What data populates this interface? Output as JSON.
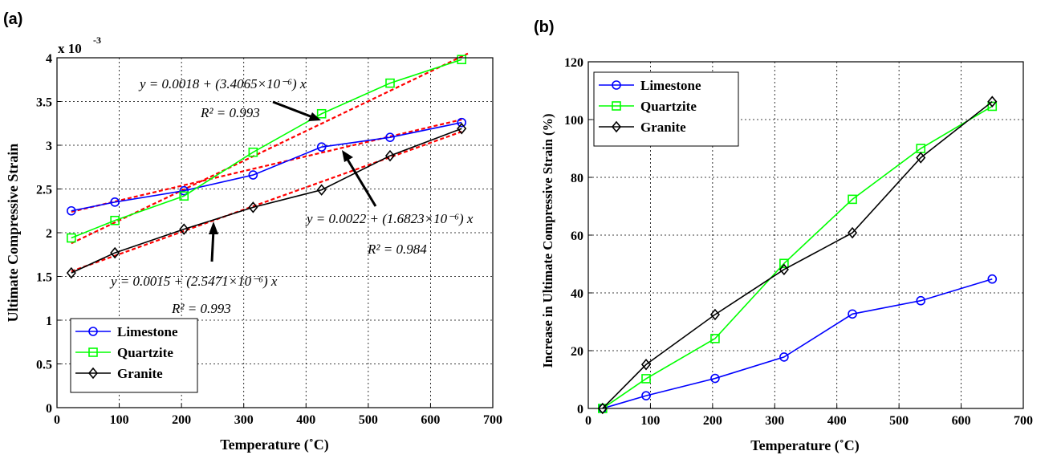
{
  "chart_data": [
    {
      "type": "line",
      "panel_label": "(a)",
      "title": "",
      "xlabel": "Temperature (˚C)",
      "ylabel": "Ultimate Compressive Strain",
      "y_multiplier_label": "x 10",
      "y_multiplier_exp": "-3",
      "xlim": [
        0,
        700
      ],
      "ylim": [
        0,
        4
      ],
      "xticks": [
        0,
        100,
        200,
        300,
        400,
        500,
        600,
        700
      ],
      "yticks": [
        0,
        0.5,
        1,
        1.5,
        2,
        2.5,
        3,
        3.5,
        4
      ],
      "grid": true,
      "legend": "bottom-left",
      "x": [
        23,
        93,
        204,
        315,
        425,
        535,
        650
      ],
      "series": [
        {
          "name": "Limestone",
          "color": "#0000FF",
          "marker": "circle",
          "values": [
            2.25,
            2.35,
            2.48,
            2.66,
            2.98,
            3.09,
            3.26
          ]
        },
        {
          "name": "Quartzite",
          "color": "#00FF00",
          "marker": "square",
          "values": [
            1.94,
            2.14,
            2.42,
            2.92,
            3.36,
            3.71,
            3.98
          ]
        },
        {
          "name": "Granite",
          "color": "#000000",
          "marker": "diamond",
          "values": [
            1.54,
            1.77,
            2.04,
            2.29,
            2.49,
            2.88,
            3.19
          ]
        }
      ],
      "fit_lines": [
        {
          "color": "#FF0000",
          "intercept": 1.8,
          "slope": 0.0034065,
          "x_range": [
            23,
            660
          ],
          "eq": "y = 0.0018 + (3.4065×10⁻⁶) x",
          "r2": "R² = 0.993"
        },
        {
          "color": "#FF0000",
          "intercept": 2.2,
          "slope": 0.0016823,
          "x_range": [
            23,
            650
          ],
          "eq": "y = 0.0022 + (1.6823×10⁻⁶) x",
          "r2": "R² = 0.984"
        },
        {
          "color": "#FF0000",
          "intercept": 1.5,
          "slope": 0.0025471,
          "x_range": [
            23,
            650
          ],
          "eq": "y = 0.0015 + (2.5471×10⁻⁶) x",
          "r2": "R² = 0.993"
        }
      ]
    },
    {
      "type": "line",
      "panel_label": "(b)",
      "title": "",
      "xlabel": "Temperature (˚C)",
      "ylabel": "Increase in Ultimate Compressive Strain (%)",
      "xlim": [
        0,
        700
      ],
      "ylim": [
        0,
        120
      ],
      "xticks": [
        0,
        100,
        200,
        300,
        400,
        500,
        600,
        700
      ],
      "yticks": [
        0,
        20,
        40,
        60,
        80,
        100,
        120
      ],
      "grid": true,
      "legend": "top-left",
      "x": [
        23,
        93,
        204,
        315,
        425,
        535,
        650
      ],
      "series": [
        {
          "name": "Limestone",
          "color": "#0000FF",
          "marker": "circle",
          "values": [
            0,
            4.4,
            10.4,
            17.8,
            32.7,
            37.3,
            44.8
          ]
        },
        {
          "name": "Quartzite",
          "color": "#00FF00",
          "marker": "square",
          "values": [
            0,
            10.3,
            24.2,
            50.2,
            72.4,
            90.0,
            104.6
          ]
        },
        {
          "name": "Granite",
          "color": "#000000",
          "marker": "diamond",
          "values": [
            0,
            15.2,
            32.5,
            48.1,
            60.8,
            86.8,
            106.2
          ]
        }
      ]
    }
  ]
}
